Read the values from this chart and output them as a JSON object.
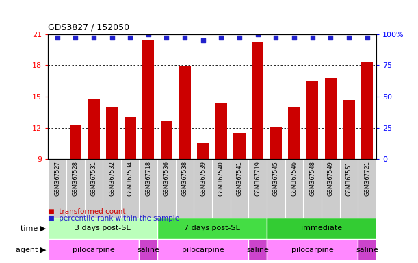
{
  "title": "GDS3827 / 152050",
  "samples": [
    "GSM367527",
    "GSM367528",
    "GSM367531",
    "GSM367532",
    "GSM367534",
    "GSM367718",
    "GSM367536",
    "GSM367538",
    "GSM367539",
    "GSM367540",
    "GSM367541",
    "GSM367719",
    "GSM367545",
    "GSM367546",
    "GSM367548",
    "GSM367549",
    "GSM367551",
    "GSM367721"
  ],
  "bar_values": [
    9.0,
    12.3,
    14.8,
    14.0,
    13.0,
    20.5,
    12.6,
    17.9,
    10.5,
    14.4,
    11.5,
    20.3,
    12.1,
    14.0,
    16.5,
    16.8,
    14.7,
    18.3
  ],
  "dot_values": [
    97,
    97,
    97,
    97,
    97,
    100,
    97,
    97,
    95,
    97,
    97,
    100,
    97,
    97,
    97,
    97,
    97,
    97
  ],
  "bar_color": "#cc0000",
  "dot_color": "#2222cc",
  "ylim_left": [
    9,
    21
  ],
  "ylim_right": [
    0,
    100
  ],
  "yticks_left": [
    9,
    12,
    15,
    18,
    21
  ],
  "yticks_right": [
    0,
    25,
    50,
    75,
    100
  ],
  "ytick_labels_right": [
    "0",
    "25",
    "50",
    "75",
    "100%"
  ],
  "grid_lines": [
    12,
    15,
    18
  ],
  "time_groups": [
    {
      "label": "3 days post-SE",
      "start": 0,
      "end": 5,
      "color": "#bbffbb"
    },
    {
      "label": "7 days post-SE",
      "start": 6,
      "end": 11,
      "color": "#44dd44"
    },
    {
      "label": "immediate",
      "start": 12,
      "end": 17,
      "color": "#33cc33"
    }
  ],
  "agent_groups": [
    {
      "label": "pilocarpine",
      "start": 0,
      "end": 4,
      "color": "#ff88ff"
    },
    {
      "label": "saline",
      "start": 5,
      "end": 5,
      "color": "#cc44cc"
    },
    {
      "label": "pilocarpine",
      "start": 6,
      "end": 10,
      "color": "#ff88ff"
    },
    {
      "label": "saline",
      "start": 11,
      "end": 11,
      "color": "#cc44cc"
    },
    {
      "label": "pilocarpine",
      "start": 12,
      "end": 16,
      "color": "#ff88ff"
    },
    {
      "label": "saline",
      "start": 17,
      "end": 17,
      "color": "#cc44cc"
    }
  ],
  "legend_items": [
    {
      "label": "transformed count",
      "color": "#cc0000"
    },
    {
      "label": "percentile rank within the sample",
      "color": "#2222cc"
    }
  ],
  "time_label": "time",
  "agent_label": "agent",
  "xlabels_bg": "#cccccc",
  "background_color": "#ffffff",
  "dot_size": 18
}
